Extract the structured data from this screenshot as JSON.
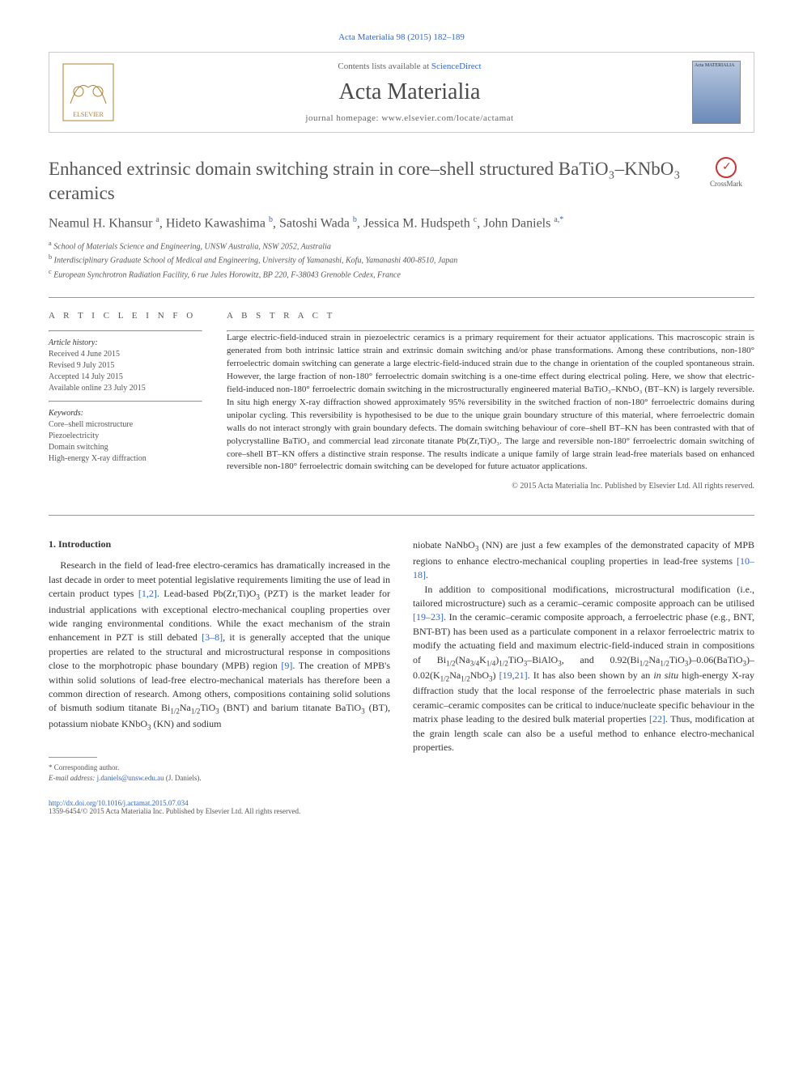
{
  "citation": "Acta Materialia 98 (2015) 182–189",
  "header": {
    "contents_prefix": "Contents lists available at ",
    "contents_link": "ScienceDirect",
    "journal": "Acta Materialia",
    "homepage_prefix": "journal homepage: ",
    "homepage": "www.elsevier.com/locate/actamat",
    "cover_label": "Acta MATERIALIA"
  },
  "title": "Enhanced extrinsic domain switching strain in core–shell structured BaTiO₃–KNbO₃ ceramics",
  "crossmark_label": "CrossMark",
  "authors_html": "Neamul H. Khansur <sup>a</sup>, Hideto Kawashima <sup>b</sup>, Satoshi Wada <sup>b</sup>, Jessica M. Hudspeth <sup>c</sup>, John Daniels <sup>a,*</sup>",
  "affiliations": [
    "a School of Materials Science and Engineering, UNSW Australia, NSW 2052, Australia",
    "b Interdisciplinary Graduate School of Medical and Engineering, University of Yamanashi, Kofu, Yamanashi 400-8510, Japan",
    "c European Synchrotron Radiation Facility, 6 rue Jules Horowitz, BP 220, F-38043 Grenoble Cedex, France"
  ],
  "info": {
    "label": "A R T I C L E   I N F O",
    "history_label": "Article history:",
    "history": [
      "Received 4 June 2015",
      "Revised 9 July 2015",
      "Accepted 14 July 2015",
      "Available online 23 July 2015"
    ],
    "keywords_label": "Keywords:",
    "keywords": [
      "Core–shell microstructure",
      "Piezoelectricity",
      "Domain switching",
      "High-energy X-ray diffraction"
    ]
  },
  "abstract": {
    "label": "A B S T R A C T",
    "text": "Large electric-field-induced strain in piezoelectric ceramics is a primary requirement for their actuator applications. This macroscopic strain is generated from both intrinsic lattice strain and extrinsic domain switching and/or phase transformations. Among these contributions, non-180° ferroelectric domain switching can generate a large electric-field-induced strain due to the change in orientation of the coupled spontaneous strain. However, the large fraction of non-180° ferroelectric domain switching is a one-time effect during electrical poling. Here, we show that electric-field-induced non-180° ferroelectric domain switching in the microstructurally engineered material BaTiO₃–KNbO₃ (BT–KN) is largely reversible. In situ high energy X-ray diffraction showed approximately 95% reversibility in the switched fraction of non-180° ferroelectric domains during unipolar cycling. This reversibility is hypothesised to be due to the unique grain boundary structure of this material, where ferroelectric domain walls do not interact strongly with grain boundary defects. The domain switching behaviour of core–shell BT–KN has been contrasted with that of polycrystalline BaTiO₃ and commercial lead zirconate titanate Pb(Zr,Ti)O₃. The large and reversible non-180° ferroelectric domain switching of core–shell BT–KN offers a distinctive strain response. The results indicate a unique family of large strain lead-free materials based on enhanced reversible non-180° ferroelectric domain switching can be developed for future actuator applications.",
    "copyright": "© 2015 Acta Materialia Inc. Published by Elsevier Ltd. All rights reserved."
  },
  "body": {
    "heading": "1. Introduction",
    "col1_html": "Research in the field of lead-free electro-ceramics has dramatically increased in the last decade in order to meet potential legislative requirements limiting the use of lead in certain product types <span class='ref'>[1,2]</span>. Lead-based Pb(Zr,Ti)O<sub>3</sub> (PZT) is the market leader for industrial applications with exceptional electro-mechanical coupling properties over wide ranging environmental conditions. While the exact mechanism of the strain enhancement in PZT is still debated <span class='ref'>[3–8]</span>, it is generally accepted that the unique properties are related to the structural and microstructural response in compositions close to the morphotropic phase boundary (MPB) region <span class='ref'>[9]</span>. The creation of MPB's within solid solutions of lead-free electro-mechanical materials has therefore been a common direction of research. Among others, compositions containing solid solutions of bismuth sodium titanate Bi<sub>1/2</sub>Na<sub>1/2</sub>TiO<sub>3</sub> (BNT) and barium titanate BaTiO<sub>3</sub> (BT), potassium niobate KNbO<sub>3</sub> (KN) and sodium",
    "col2_p1_html": "niobate NaNbO<sub>3</sub> (NN) are just a few examples of the demonstrated capacity of MPB regions to enhance electro-mechanical coupling properties in lead-free systems <span class='ref'>[10–18]</span>.",
    "col2_p2_html": "In addition to compositional modifications, microstructural modification (i.e., tailored microstructure) such as a ceramic–ceramic composite approach can be utilised <span class='ref'>[19–23]</span>. In the ceramic–ceramic composite approach, a ferroelectric phase (e.g., BNT, BNT-BT) has been used as a particulate component in a relaxor ferroelectric matrix to modify the actuating field and maximum electric-field-induced strain in compositions of Bi<sub>1/2</sub>(Na<sub>3/4</sub>K<sub>1/4</sub>)<sub>1/2</sub>TiO<sub>3</sub>–BiAlO<sub>3</sub>, and 0.92(Bi<sub>1/2</sub>Na<sub>1/2</sub>TiO<sub>3</sub>)–0.06(BaTiO<sub>3</sub>)–0.02(K<sub>1/2</sub>Na<sub>1/2</sub>NbO<sub>3</sub>) <span class='ref'>[19,21]</span>. It has also been shown by an <i>in situ</i> high-energy X-ray diffraction study that the local response of the ferroelectric phase materials in such ceramic–ceramic composites can be critical to induce/nucleate specific behaviour in the matrix phase leading to the desired bulk material properties <span class='ref'>[22]</span>. Thus, modification at the grain length scale can also be a useful method to enhance electro-mechanical properties."
  },
  "footnote": {
    "corresponding": "* Corresponding author.",
    "email_label": "E-mail address: ",
    "email": "j.daniels@unsw.edu.au",
    "email_suffix": " (J. Daniels)."
  },
  "footer": {
    "doi": "http://dx.doi.org/10.1016/j.actamat.2015.07.034",
    "issn_line": "1359-6454/© 2015 Acta Materialia Inc. Published by Elsevier Ltd. All rights reserved."
  },
  "colors": {
    "link": "#3366cc",
    "text": "#333333",
    "muted": "#555555",
    "border": "#999999"
  }
}
